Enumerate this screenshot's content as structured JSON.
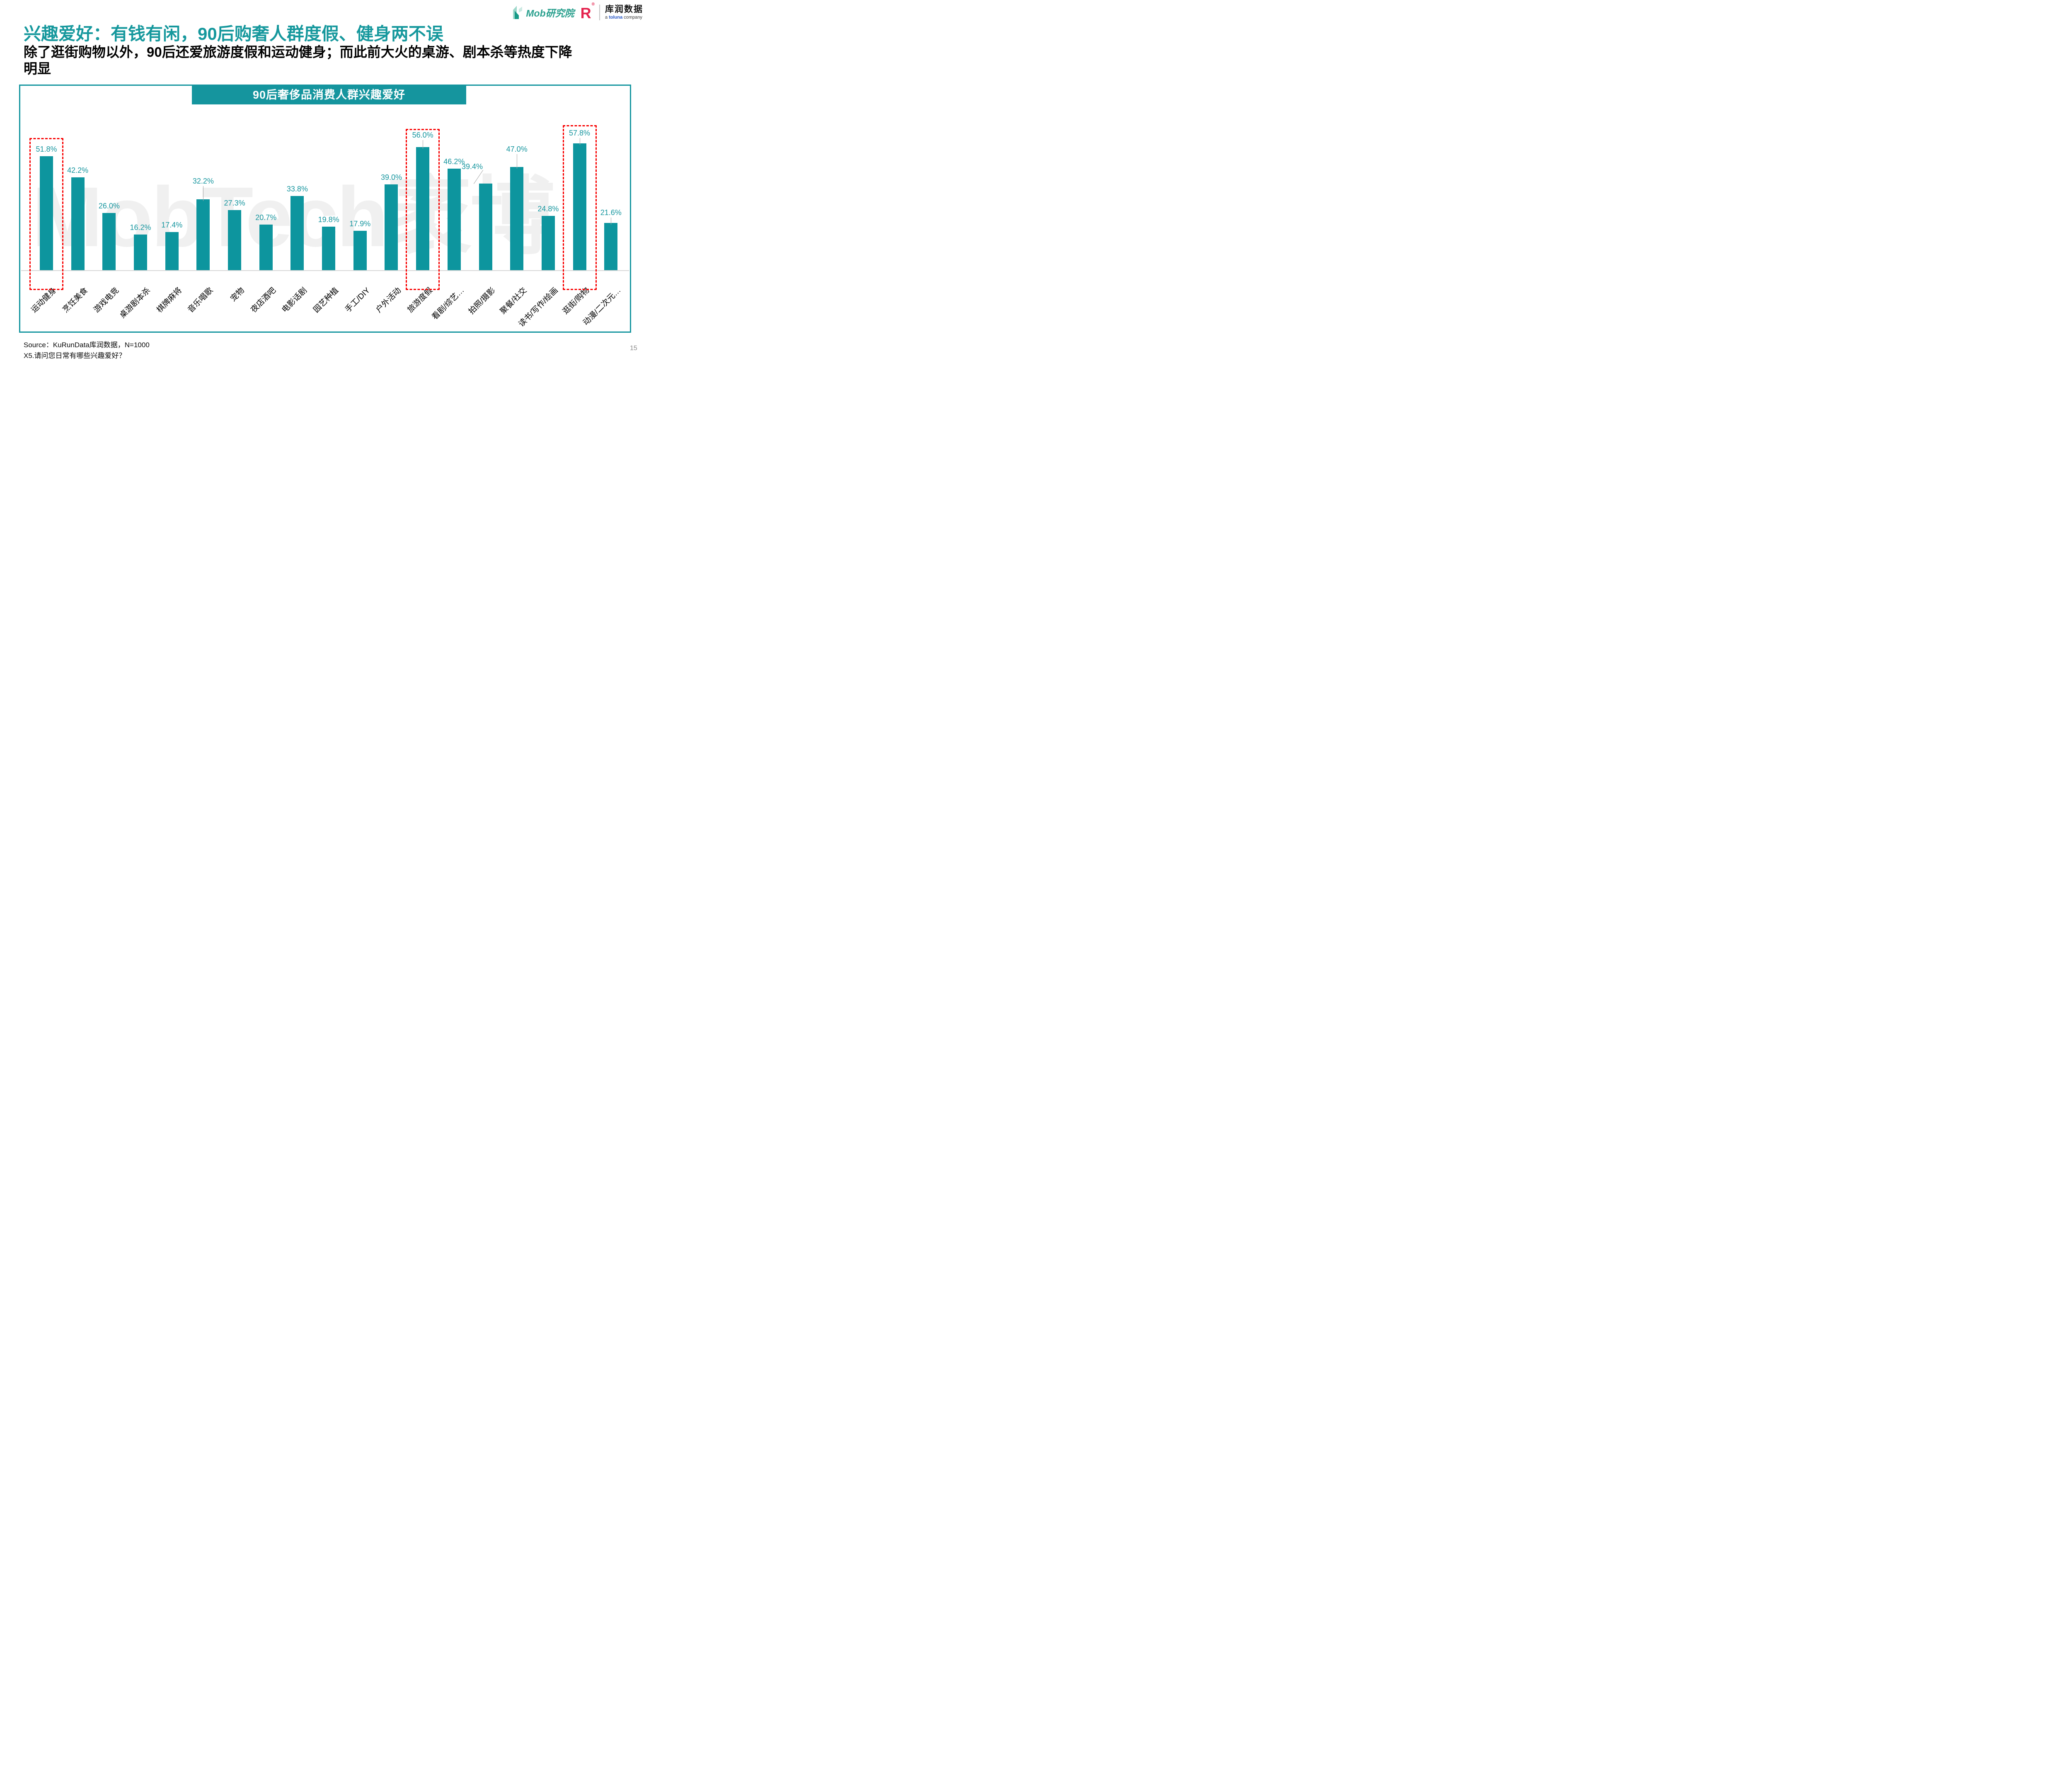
{
  "header": {
    "title": "兴趣爱好：有钱有闲，90后购奢人群度假、健身两不误",
    "subtitle_lines": [
      "除了逛街购物以外，90后还爱旅游度假和运动健身；而此前大火的桌游、剧本杀等热度下降",
      "明显"
    ],
    "logos": {
      "mob": {
        "name": "Mob研究院"
      },
      "kurun": {
        "r_mark": "R",
        "registered": "®",
        "name": "库润数据",
        "tagline_prefix": "a",
        "tagline_brand": "toluna",
        "tagline_suffix": "company"
      }
    }
  },
  "chart_data": {
    "type": "bar",
    "title": "90后奢侈品消费人群兴趣爱好",
    "watermark": "MobTech袤博",
    "categories": [
      "运动健身",
      "烹饪美食",
      "游戏电竞",
      "桌游剧本杀",
      "棋牌麻将",
      "音乐唱歌",
      "宠物",
      "夜店酒吧",
      "电影话剧",
      "园艺种植",
      "手工/DIY",
      "户外活动",
      "旅游度假",
      "看剧/综艺…",
      "拍照/摄影",
      "聚餐/社交",
      "读书/写作/绘画",
      "逛街/购物",
      "动漫/二次元…"
    ],
    "values": [
      51.8,
      42.2,
      26.0,
      16.2,
      17.4,
      32.2,
      27.3,
      20.7,
      33.8,
      19.8,
      17.9,
      39.0,
      56.0,
      46.2,
      39.4,
      47.0,
      24.8,
      57.8,
      21.6
    ],
    "value_labels": [
      "51.8%",
      "42.2%",
      "26.0%",
      "16.2%",
      "17.4%",
      "32.2%",
      "27.3%",
      "20.7%",
      "33.8%",
      "19.8%",
      "17.9%",
      "39.0%",
      "56.0%",
      "46.2%",
      "39.4%",
      "47.0%",
      "24.8%",
      "57.8%",
      "21.6%"
    ],
    "unit": "%",
    "xlabel": "",
    "ylabel": "",
    "ylim": [
      0,
      60
    ],
    "grid": false,
    "legend": false,
    "bar_color": "#0D959E",
    "label_color": "#17969F",
    "axis_color": "#D8D8D8",
    "highlight_box_color": "#F80000",
    "highlighted_indices": [
      0,
      12,
      17
    ],
    "leader_offsets": {
      "5": 43,
      "12": 28,
      "14": 40,
      "15": 42,
      "17": 24,
      "18": 24
    }
  },
  "footer": {
    "source": "Source：KuRunData库润数据，N=1000",
    "question": "X5.请问您日常有哪些兴趣爱好？",
    "page_number": "15"
  }
}
